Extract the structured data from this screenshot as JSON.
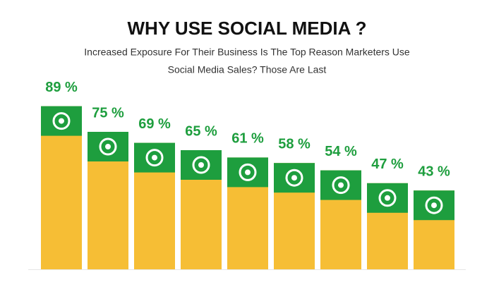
{
  "chart_data": {
    "type": "bar",
    "title": "WHY USE SOCIAL MEDIA ?",
    "subtitle": [
      "Increased Exposure For Their Business Is The Top Reason Marketers Use",
      "Social Media Sales? Those Are Last"
    ],
    "values": [
      89,
      75,
      69,
      65,
      61,
      58,
      54,
      47,
      43
    ],
    "value_labels": [
      "89 %",
      "75 %",
      "69 %",
      "65 %",
      "61 %",
      "58 %",
      "54 %",
      "47 %",
      "43 %"
    ],
    "color": "#f6be35",
    "accent_color": "#1e9e3e"
  }
}
